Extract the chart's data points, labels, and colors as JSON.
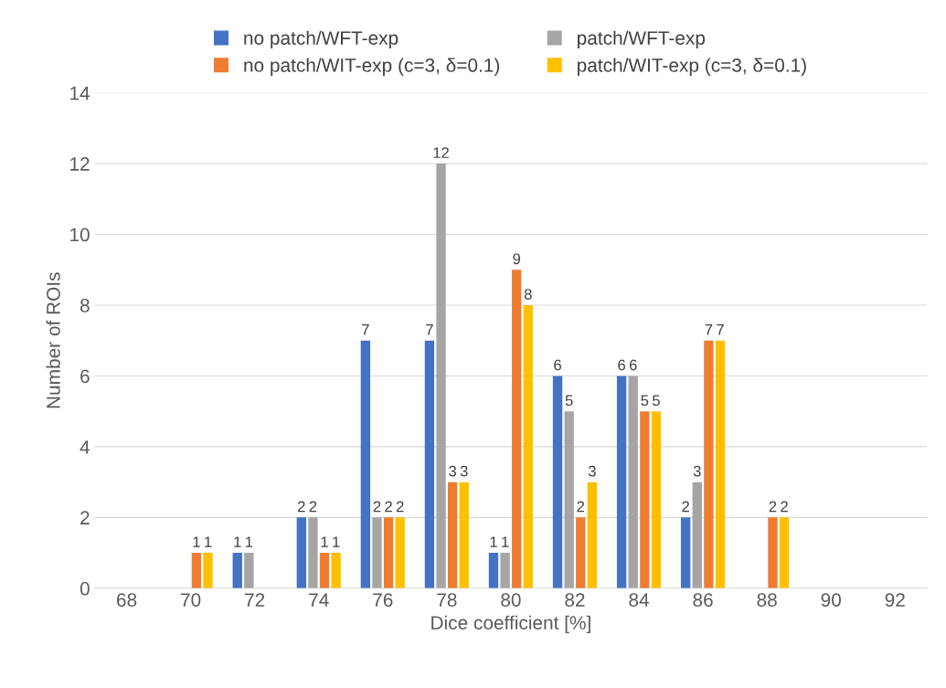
{
  "chart_data": {
    "type": "bar",
    "xlabel": "Dice coefficient [%]",
    "ylabel": "Number of ROIs",
    "categories": [
      "68",
      "70",
      "72",
      "74",
      "76",
      "78",
      "80",
      "82",
      "84",
      "86",
      "88",
      "90",
      "92"
    ],
    "series": [
      {
        "name": "no patch/WFT-exp",
        "color": "#4472c4",
        "values": [
          0,
          0,
          1,
          2,
          7,
          7,
          1,
          6,
          6,
          2,
          0,
          0,
          0
        ],
        "value_labels": [
          null,
          null,
          "1",
          "2",
          "7",
          "7",
          "1",
          "6",
          "6",
          "2",
          null,
          null,
          null
        ]
      },
      {
        "name": "patch/WFT-exp",
        "color": "#a5a5a5",
        "values": [
          0,
          0,
          1,
          2,
          2,
          12,
          1,
          5,
          6,
          3,
          0,
          0,
          0
        ],
        "value_labels": [
          null,
          null,
          "1",
          "2",
          "2",
          "12",
          "1",
          "5",
          "6",
          "3",
          null,
          null,
          null
        ]
      },
      {
        "name": "no patch/WIT-exp (c=3, δ=0.1)",
        "color": "#ed7d31",
        "values": [
          0,
          1,
          0,
          1,
          2,
          3,
          9,
          2,
          5,
          7,
          2,
          0,
          0
        ],
        "value_labels": [
          null,
          "1",
          null,
          "1",
          "2",
          "3",
          "9",
          "2",
          "5",
          "7",
          "2",
          null,
          null
        ]
      },
      {
        "name": "patch/WIT-exp (c=3, δ=0.1)",
        "color": "#ffc000",
        "values": [
          0,
          1,
          0,
          1,
          2,
          3,
          8,
          3,
          5,
          7,
          2,
          0,
          0
        ],
        "value_labels": [
          null,
          "1",
          null,
          "1",
          "2",
          "3",
          "8",
          "3",
          "5",
          "7",
          "2",
          null,
          null
        ]
      }
    ],
    "ylim": [
      0,
      14
    ],
    "yticks": [
      0,
      2,
      4,
      6,
      8,
      10,
      12,
      14
    ],
    "grid": "y",
    "legend": "top"
  }
}
